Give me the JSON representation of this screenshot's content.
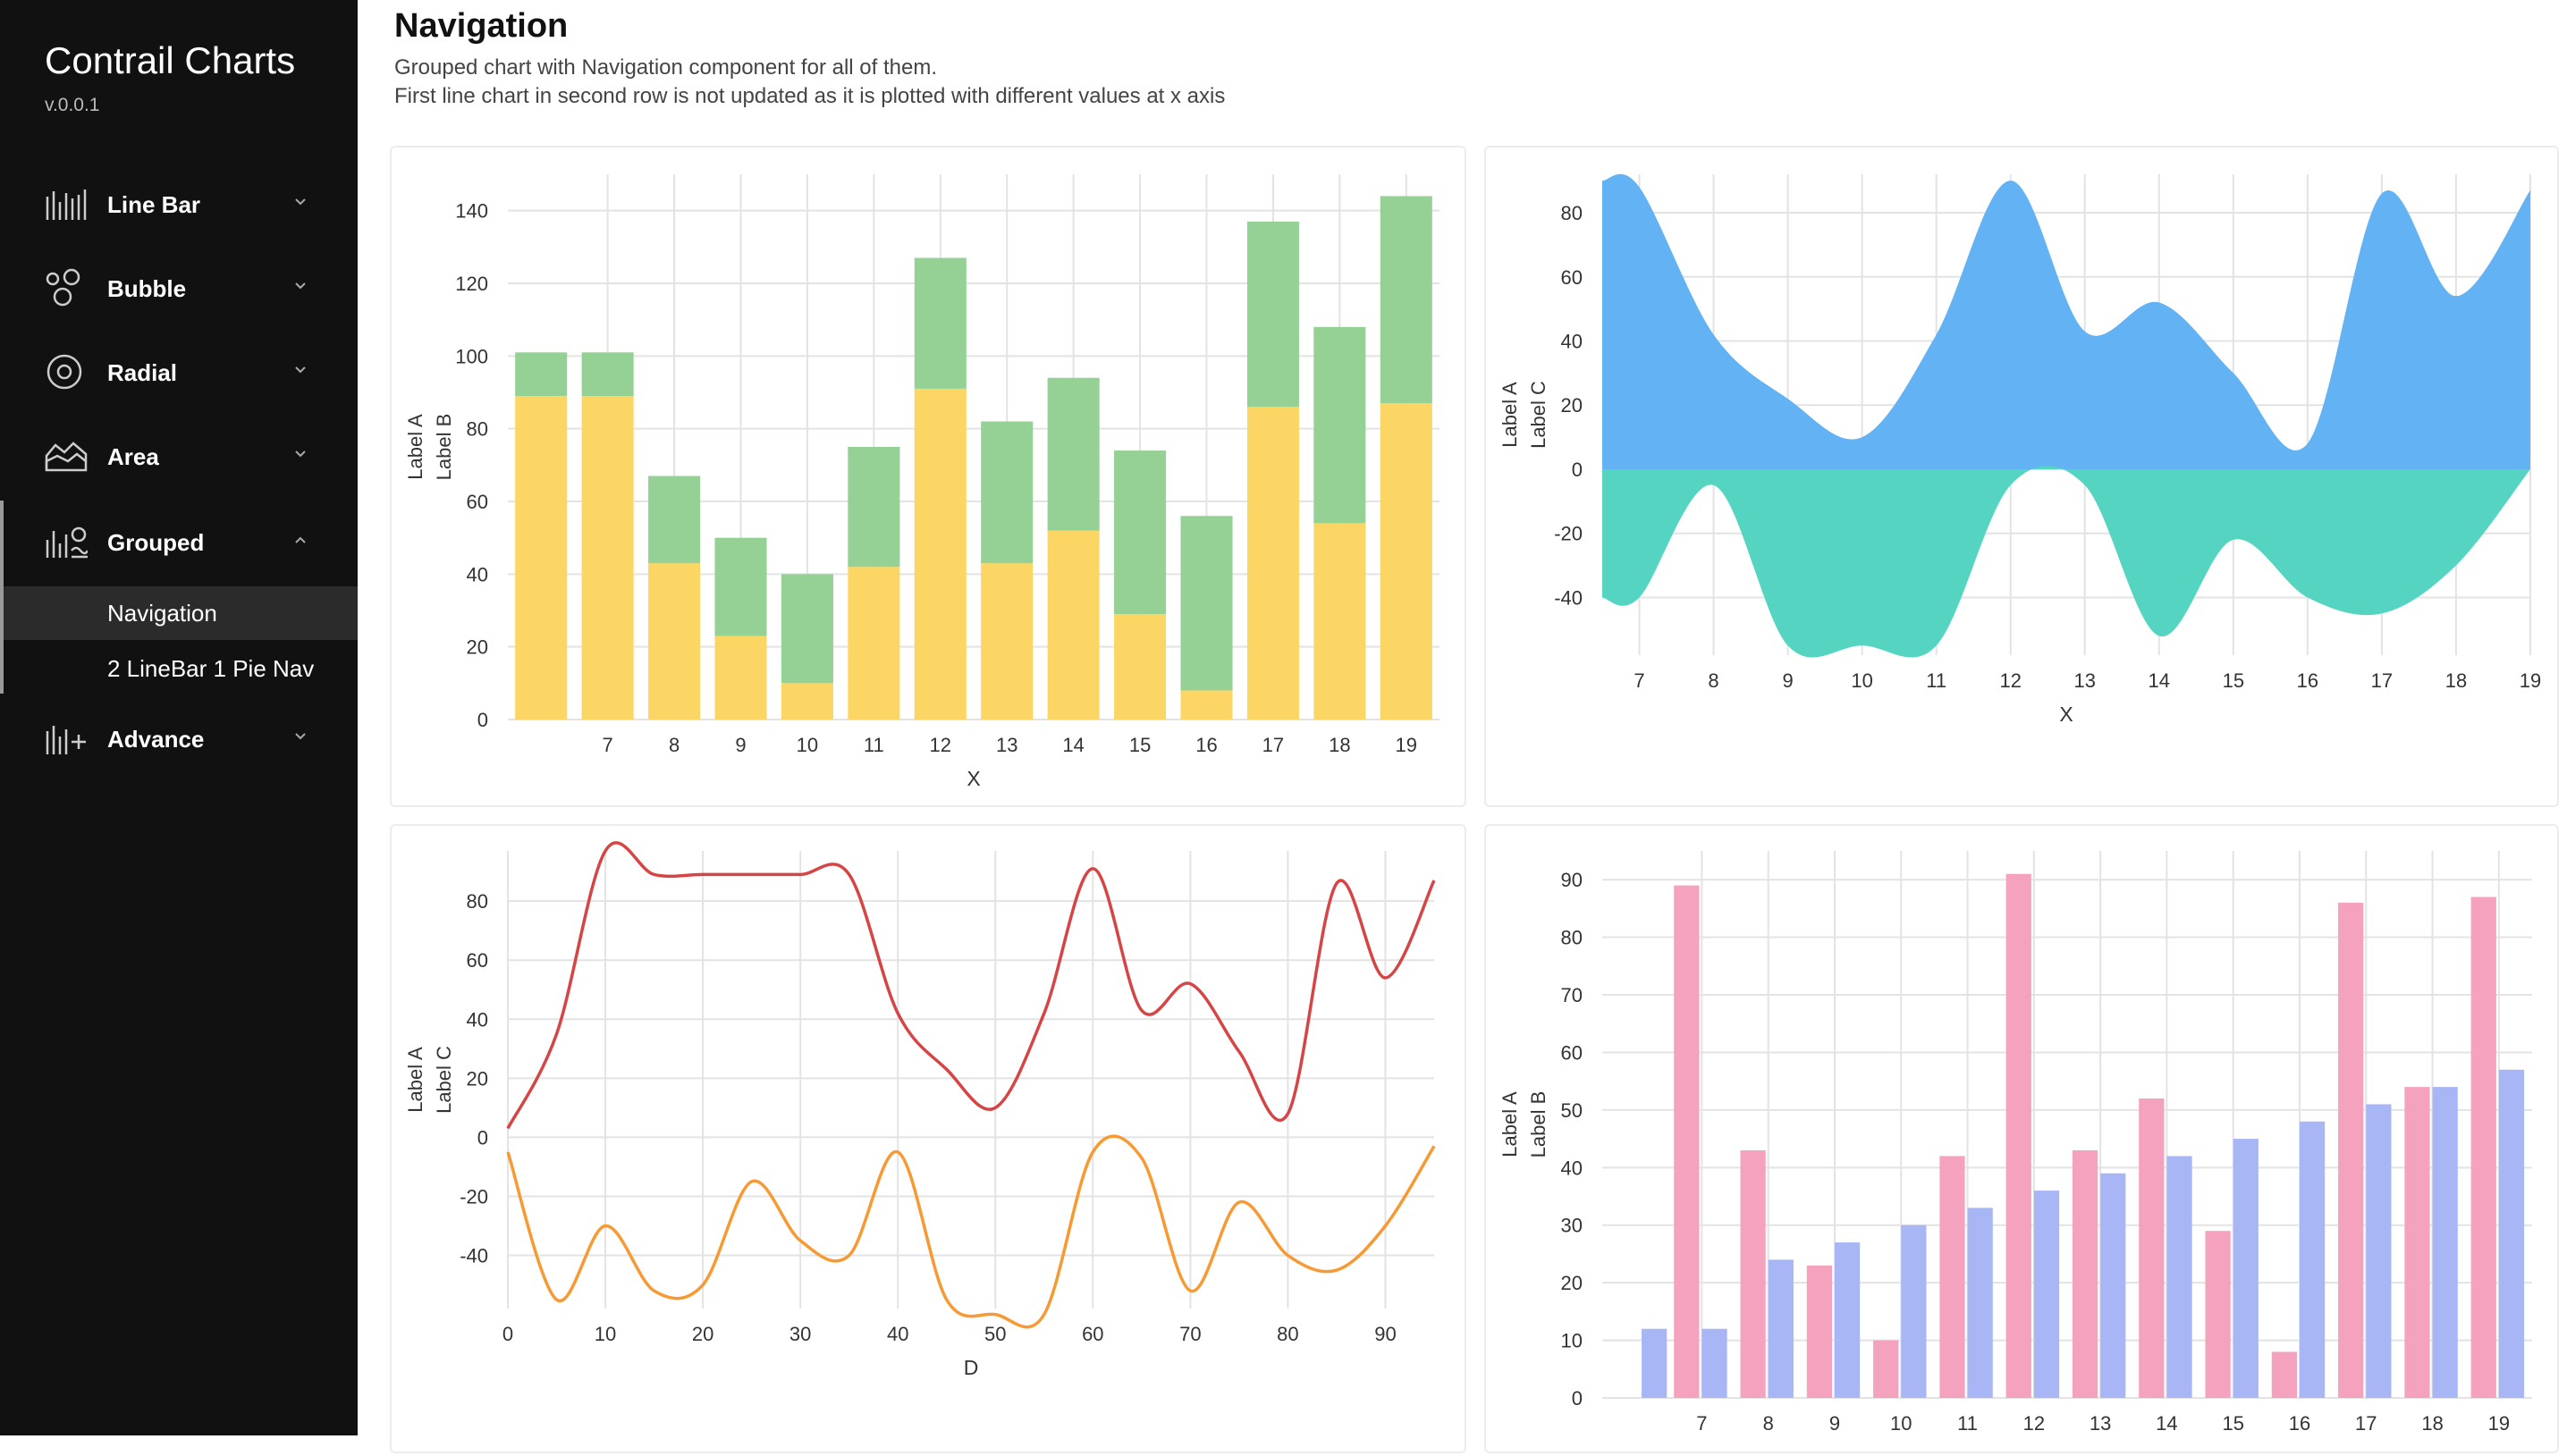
{
  "app": {
    "title": "Contrail Charts",
    "version": "v.0.0.1"
  },
  "sidebar": {
    "items": [
      {
        "label": "Line Bar",
        "icon": "line-bar-icon",
        "expanded": false
      },
      {
        "label": "Bubble",
        "icon": "bubble-icon",
        "expanded": false
      },
      {
        "label": "Radial",
        "icon": "radial-icon",
        "expanded": false
      },
      {
        "label": "Area",
        "icon": "area-icon",
        "expanded": false
      },
      {
        "label": "Grouped",
        "icon": "grouped-icon",
        "expanded": true
      },
      {
        "label": "Advance",
        "icon": "advance-icon",
        "expanded": false
      }
    ],
    "subitems": [
      {
        "label": "Navigation",
        "selected": true
      },
      {
        "label": "2 LineBar 1 Pie Nav",
        "selected": false
      }
    ]
  },
  "page": {
    "title": "Navigation",
    "description_line1": "Grouped chart with Navigation component for all of them.",
    "description_line2": "First line chart in second row is not updated as it is plotted with different values at x axis"
  },
  "colors": {
    "yellow": "#fcd664",
    "green": "#95d195",
    "blue": "#63b2f3",
    "teal": "#55d4c2",
    "red": "#d64545",
    "orange": "#f79a34",
    "pink": "#f4a2be",
    "periwinkle": "#a8b6f6"
  },
  "chart_data": [
    {
      "type": "bar",
      "stacked": true,
      "categories": [
        "6",
        "7",
        "8",
        "9",
        "10",
        "11",
        "12",
        "13",
        "14",
        "15",
        "16",
        "17",
        "18",
        "19"
      ],
      "tick_labels": [
        "7",
        "8",
        "9",
        "10",
        "11",
        "12",
        "13",
        "14",
        "15",
        "16",
        "17",
        "18",
        "19"
      ],
      "series": [
        {
          "name": "Label A",
          "values": [
            89,
            89,
            43,
            23,
            10,
            42,
            91,
            43,
            52,
            29,
            8,
            86,
            54,
            87
          ]
        },
        {
          "name": "Label B",
          "values": [
            12,
            12,
            24,
            27,
            30,
            33,
            36,
            39,
            42,
            45,
            48,
            51,
            54,
            57
          ]
        }
      ],
      "y_ticks": [
        "0",
        "20",
        "40",
        "60",
        "80",
        "100",
        "120",
        "140"
      ],
      "xlabel": "X",
      "ylabel_lines": [
        "Label A",
        "Label B"
      ],
      "ylim": [
        0,
        150
      ]
    },
    {
      "type": "area",
      "x": [
        6.5,
        7,
        8,
        9,
        10,
        11,
        12,
        13,
        14,
        15,
        16,
        17,
        18,
        19
      ],
      "tick_labels": [
        "7",
        "8",
        "9",
        "10",
        "11",
        "12",
        "13",
        "14",
        "15",
        "16",
        "17",
        "18",
        "19"
      ],
      "series": [
        {
          "name": "Label A",
          "values": [
            90,
            88,
            42,
            22,
            10,
            42,
            90,
            43,
            52,
            30,
            8,
            86,
            54,
            87
          ]
        },
        {
          "name": "Label C",
          "values": [
            -40,
            -40,
            -5,
            -55,
            -55,
            -55,
            -5,
            -5,
            -52,
            -22,
            -40,
            -45,
            -30,
            0
          ]
        }
      ],
      "y_ticks": [
        "-40",
        "-20",
        "0",
        "20",
        "40",
        "60",
        "80"
      ],
      "xlabel": "X",
      "ylabel_lines": [
        "Label A",
        "Label C"
      ],
      "ylim": [
        -58,
        92
      ]
    },
    {
      "type": "line",
      "x": [
        0,
        5,
        10,
        15,
        20,
        25,
        30,
        35,
        40,
        45,
        50,
        55,
        60,
        65,
        70,
        75,
        80,
        85,
        90,
        95
      ],
      "tick_labels": [
        "0",
        "10",
        "20",
        "30",
        "40",
        "50",
        "60",
        "70",
        "80",
        "90"
      ],
      "series": [
        {
          "name": "Label A",
          "values": [
            3,
            35,
            97,
            89,
            89,
            89,
            89,
            89,
            42,
            23,
            10,
            42,
            91,
            43,
            52,
            29,
            8,
            86,
            54,
            87
          ]
        },
        {
          "name": "Label C",
          "values": [
            -5,
            -55,
            -30,
            -52,
            -50,
            -15,
            -35,
            -40,
            -5,
            -55,
            -60,
            -60,
            -5,
            -7,
            -52,
            -22,
            -40,
            -45,
            -30,
            -3
          ]
        }
      ],
      "y_ticks": [
        "-40",
        "-20",
        "0",
        "20",
        "40",
        "60",
        "80"
      ],
      "xlabel": "D",
      "ylabel_lines": [
        "Label A",
        "Label C"
      ],
      "ylim": [
        -58,
        97
      ]
    },
    {
      "type": "bar",
      "stacked": false,
      "categories": [
        "6",
        "7",
        "8",
        "9",
        "10",
        "11",
        "12",
        "13",
        "14",
        "15",
        "16",
        "17",
        "18",
        "19"
      ],
      "tick_labels": [
        "7",
        "8",
        "9",
        "10",
        "11",
        "12",
        "13",
        "14",
        "15",
        "16",
        "17",
        "18",
        "19"
      ],
      "series": [
        {
          "name": "Label A",
          "values": [
            null,
            89,
            43,
            23,
            10,
            42,
            91,
            43,
            52,
            29,
            8,
            86,
            54,
            87
          ]
        },
        {
          "name": "Label B",
          "values": [
            12,
            12,
            24,
            27,
            30,
            33,
            36,
            39,
            42,
            45,
            48,
            51,
            54,
            57
          ]
        }
      ],
      "y_ticks": [
        "0",
        "10",
        "20",
        "30",
        "40",
        "50",
        "60",
        "70",
        "80",
        "90"
      ],
      "ylabel_lines": [
        "Label A",
        "Label B"
      ],
      "ylim": [
        0,
        95
      ]
    }
  ]
}
